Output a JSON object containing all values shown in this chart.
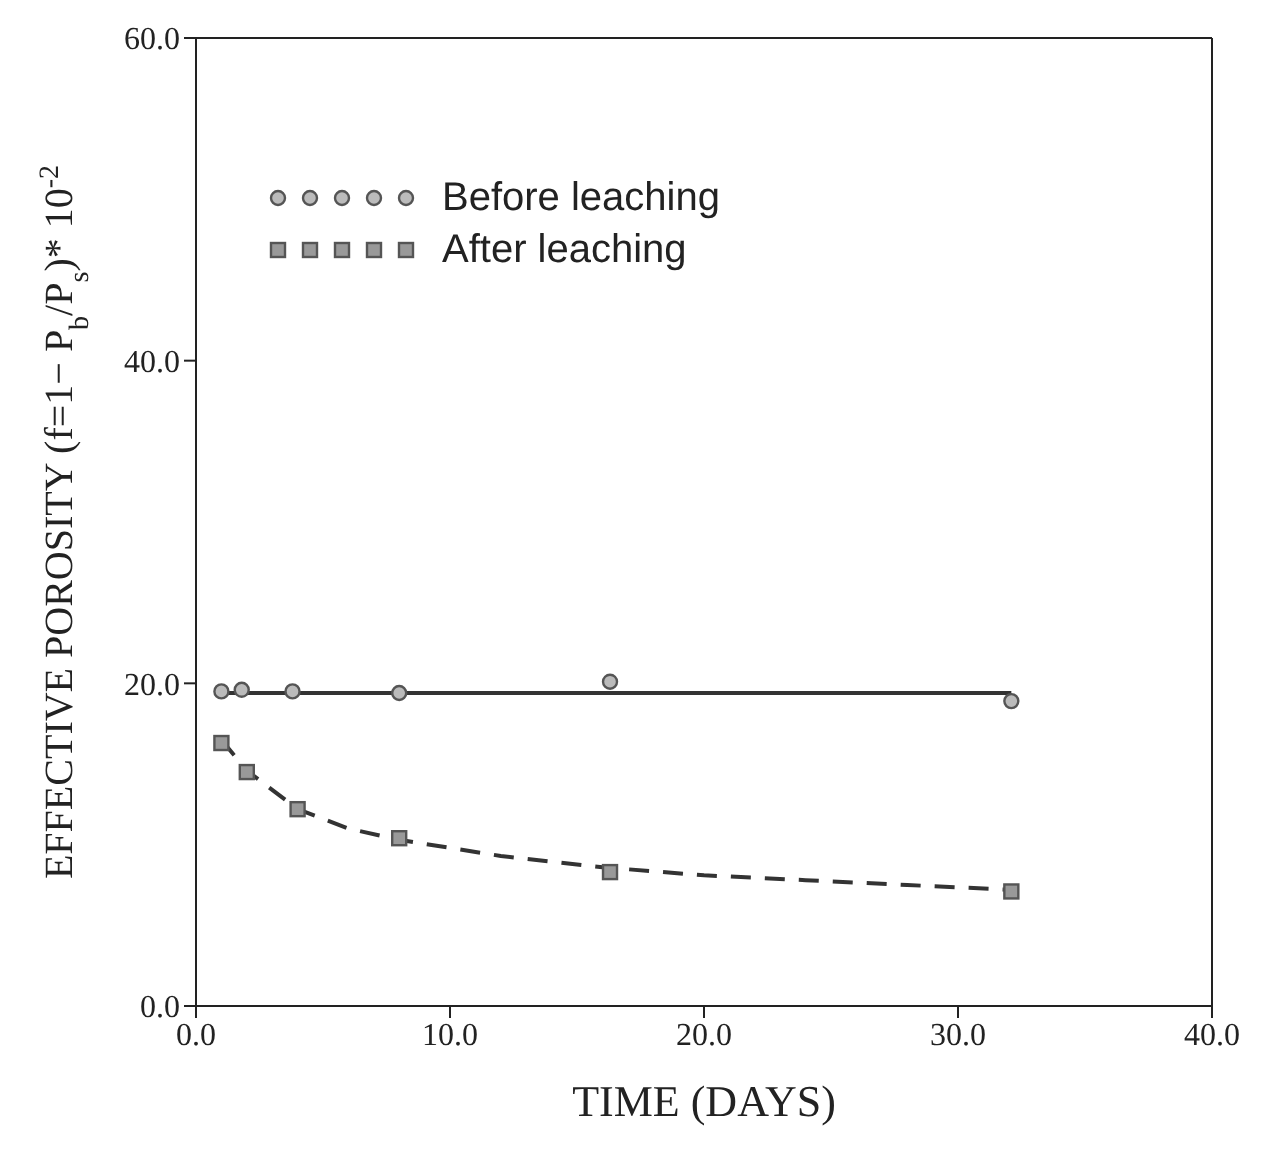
{
  "chart_data": {
    "type": "scatter",
    "xlabel": "TIME (DAYS)",
    "ylabel": "EFFECTIVE POROSITY (f=1− P$_{b}$/P$_{s}$)* 10$^{-2}$",
    "xlim": [
      0,
      40
    ],
    "ylim": [
      0,
      60
    ],
    "xticks": [
      {
        "value": 0,
        "label": "0.0"
      },
      {
        "value": 10,
        "label": "10.0"
      },
      {
        "value": 20,
        "label": "20.0"
      },
      {
        "value": 30,
        "label": "30.0"
      },
      {
        "value": 40,
        "label": "40.0"
      }
    ],
    "yticks": [
      {
        "value": 0,
        "label": "0.0"
      },
      {
        "value": 20,
        "label": "20.0"
      },
      {
        "value": 40,
        "label": "40.0"
      },
      {
        "value": 60,
        "label": "60.0"
      }
    ],
    "legend": "top left",
    "series": [
      {
        "name": "Before leaching",
        "marker": "circle",
        "color": "#555555",
        "x": [
          1,
          1.8,
          3.8,
          8,
          16.3,
          32.1
        ],
        "values": [
          19.5,
          19.6,
          19.5,
          19.4,
          20.1,
          18.9
        ]
      },
      {
        "name": "After leaching",
        "marker": "square",
        "color": "#555555",
        "x": [
          1,
          2,
          4,
          8,
          16.3,
          32.1
        ],
        "values": [
          16.3,
          14.5,
          12.2,
          10.4,
          8.3,
          7.1
        ]
      },
      {
        "type": "line",
        "line_style": "solid",
        "color": "#333333",
        "x": [
          1,
          32.1
        ],
        "values": [
          19.4,
          19.4
        ]
      },
      {
        "type": "line",
        "line_style": "dashed",
        "color": "#333333",
        "x": [
          1,
          2,
          4,
          6,
          8,
          12,
          16,
          20,
          24,
          28,
          32.1
        ],
        "values": [
          16.5,
          14.6,
          12.2,
          11.0,
          10.3,
          9.3,
          8.6,
          8.1,
          7.8,
          7.5,
          7.2
        ]
      }
    ]
  }
}
